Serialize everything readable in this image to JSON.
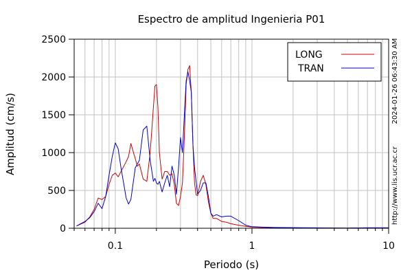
{
  "chart_data": {
    "type": "line",
    "title": "Espectro de amplitud Ingenieria P01",
    "xlabel": "Periodo (s)",
    "ylabel": "Amplitud (cm/s)",
    "x_scale": "log",
    "xlim": [
      0.05,
      10
    ],
    "ylim": [
      0,
      2500
    ],
    "x_ticks": [
      {
        "value": 0.1,
        "label": "0.1"
      },
      {
        "value": 1,
        "label": "1"
      },
      {
        "value": 10,
        "label": "10"
      }
    ],
    "y_ticks": [
      {
        "value": 0,
        "label": "0"
      },
      {
        "value": 500,
        "label": "500"
      },
      {
        "value": 1000,
        "label": "1000"
      },
      {
        "value": 1500,
        "label": "1500"
      },
      {
        "value": 2000,
        "label": "2000"
      },
      {
        "value": 2500,
        "label": "2500"
      }
    ],
    "grid": true,
    "legend_position": "top-right",
    "series": [
      {
        "name": "LONG",
        "color": "#cc0000",
        "x": [
          0.052,
          0.06,
          0.065,
          0.07,
          0.075,
          0.08,
          0.085,
          0.09,
          0.095,
          0.1,
          0.105,
          0.11,
          0.12,
          0.125,
          0.13,
          0.14,
          0.145,
          0.15,
          0.16,
          0.17,
          0.18,
          0.19,
          0.195,
          0.2,
          0.205,
          0.21,
          0.22,
          0.23,
          0.24,
          0.25,
          0.26,
          0.27,
          0.28,
          0.29,
          0.3,
          0.31,
          0.32,
          0.33,
          0.34,
          0.35,
          0.36,
          0.37,
          0.38,
          0.39,
          0.4,
          0.42,
          0.44,
          0.46,
          0.48,
          0.5,
          0.52,
          0.55,
          0.6,
          0.65,
          0.7,
          0.8,
          0.9,
          1.0,
          1.2,
          1.5,
          2.0,
          3.0,
          5.0,
          7.0,
          10.0
        ],
        "y": [
          30,
          80,
          150,
          250,
          400,
          380,
          420,
          580,
          700,
          730,
          680,
          750,
          880,
          950,
          1120,
          920,
          820,
          850,
          650,
          620,
          1000,
          1600,
          1880,
          1900,
          1600,
          1000,
          650,
          750,
          750,
          700,
          720,
          580,
          330,
          300,
          420,
          600,
          1200,
          1900,
          2100,
          2150,
          1800,
          1100,
          600,
          440,
          430,
          620,
          700,
          580,
          350,
          200,
          130,
          130,
          90,
          80,
          60,
          40,
          25,
          15,
          10,
          8,
          5,
          3,
          2,
          5,
          5
        ]
      },
      {
        "name": "TRAN",
        "color": "#0000cc",
        "x": [
          0.052,
          0.06,
          0.065,
          0.07,
          0.075,
          0.08,
          0.085,
          0.09,
          0.095,
          0.1,
          0.105,
          0.11,
          0.12,
          0.125,
          0.13,
          0.14,
          0.145,
          0.15,
          0.16,
          0.17,
          0.18,
          0.19,
          0.195,
          0.2,
          0.205,
          0.21,
          0.22,
          0.23,
          0.24,
          0.25,
          0.26,
          0.27,
          0.28,
          0.29,
          0.3,
          0.31,
          0.32,
          0.33,
          0.34,
          0.35,
          0.36,
          0.37,
          0.38,
          0.39,
          0.4,
          0.42,
          0.44,
          0.46,
          0.48,
          0.5,
          0.52,
          0.55,
          0.6,
          0.65,
          0.7,
          0.8,
          0.9,
          1.0,
          1.2,
          1.5,
          2.0,
          3.0,
          5.0,
          7.0,
          10.0
        ],
        "y": [
          30,
          90,
          140,
          220,
          330,
          260,
          420,
          700,
          950,
          1130,
          1050,
          800,
          400,
          320,
          380,
          800,
          850,
          900,
          1300,
          1350,
          900,
          620,
          660,
          600,
          580,
          620,
          480,
          600,
          700,
          550,
          820,
          700,
          450,
          800,
          1200,
          1000,
          1500,
          1950,
          2070,
          1950,
          1800,
          1100,
          800,
          620,
          450,
          500,
          600,
          600,
          420,
          200,
          160,
          180,
          150,
          160,
          160,
          100,
          40,
          20,
          15,
          10,
          8,
          5,
          3,
          5,
          5
        ]
      }
    ]
  },
  "side_text": {
    "timestamp": "2024-01-26 06:43:30 AM",
    "url": "http://www.lis.ucr.ac.cr"
  }
}
